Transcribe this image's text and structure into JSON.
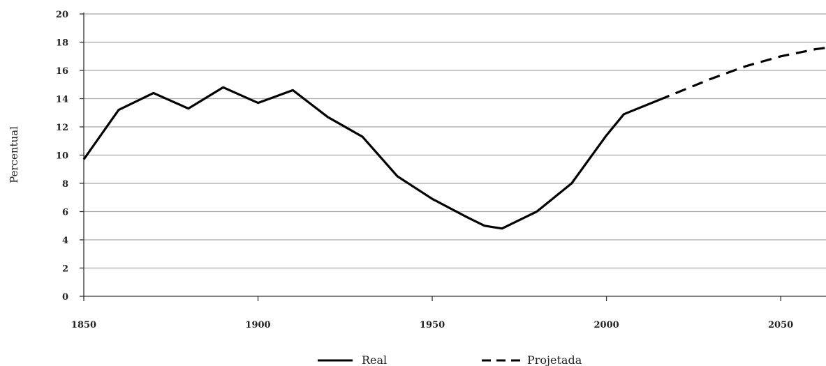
{
  "chart_data": {
    "type": "line",
    "ylabel": "Percentual",
    "xlim": [
      1850,
      2063
    ],
    "ylim": [
      0,
      20
    ],
    "x_ticks": [
      1850,
      1900,
      1950,
      2000,
      2050
    ],
    "y_ticks": [
      0,
      2,
      4,
      6,
      8,
      10,
      12,
      14,
      16,
      18,
      20
    ],
    "grid": "horizontal",
    "legend_position": "bottom-center",
    "series": [
      {
        "name": "Real",
        "style": "solid",
        "color": "#000000",
        "x": [
          1850,
          1860,
          1870,
          1880,
          1890,
          1900,
          1910,
          1920,
          1930,
          1940,
          1950,
          1960,
          1965,
          1970,
          1980,
          1990,
          2000,
          2005,
          2015
        ],
        "y": [
          9.7,
          13.2,
          14.4,
          13.3,
          14.8,
          13.7,
          14.6,
          12.7,
          11.3,
          8.5,
          6.9,
          5.6,
          5.0,
          4.8,
          6.0,
          8.0,
          11.4,
          12.9,
          13.9
        ]
      },
      {
        "name": "Projetada",
        "style": "dashed",
        "color": "#000000",
        "x": [
          2015,
          2020,
          2030,
          2040,
          2050,
          2060,
          2063
        ],
        "y": [
          13.9,
          14.4,
          15.4,
          16.3,
          17.0,
          17.5,
          17.6
        ]
      }
    ]
  }
}
